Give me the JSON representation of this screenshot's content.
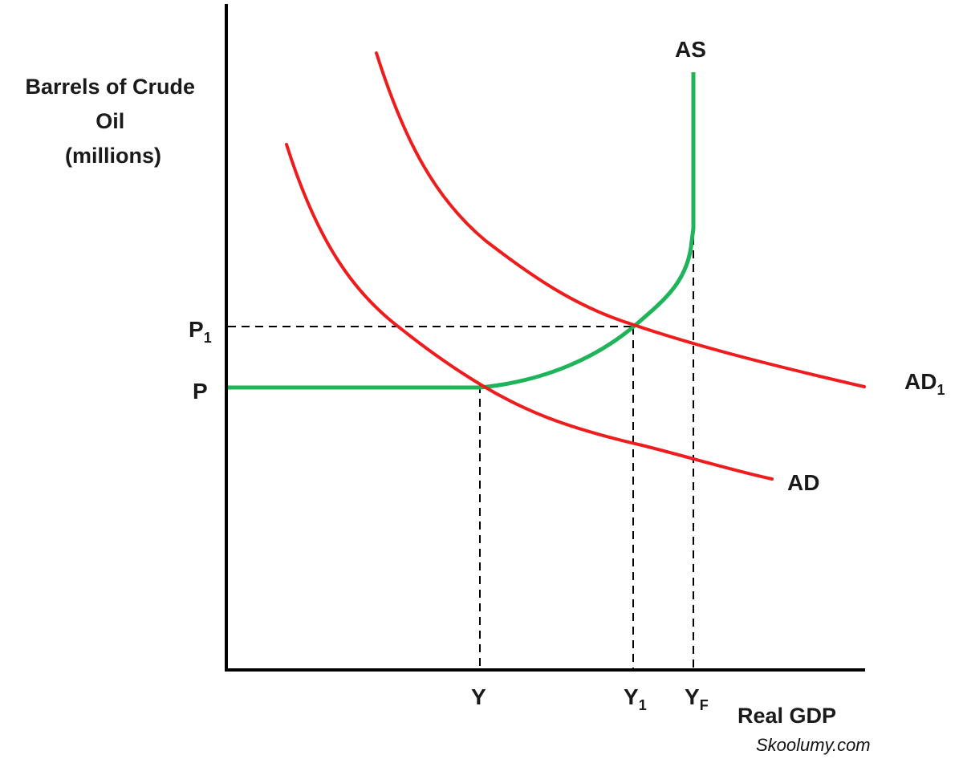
{
  "axes": {
    "y_title_lines": [
      "Barrels of Crude",
      "Oil",
      "(millions)"
    ],
    "x_title": "Real GDP"
  },
  "price_levels": {
    "p": "P",
    "p1_main": "P",
    "p1_sub": "1"
  },
  "output_levels": {
    "y": "Y",
    "y1_main": "Y",
    "y1_sub": "1",
    "yf_main": "Y",
    "yf_sub": "F"
  },
  "curves": {
    "as_label": "AS",
    "ad_label": "AD",
    "ad1_main": "AD",
    "ad1_sub": "1",
    "ad_color": "#ee1c1c",
    "as_color": "#1fb35a"
  },
  "watermark": "Skoolumy.com"
}
